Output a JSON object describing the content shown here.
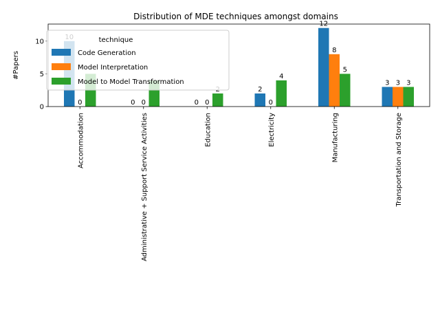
{
  "chart_data": {
    "type": "bar",
    "title": "Distribution of MDE techniques amongst domains",
    "xlabel": "",
    "ylabel": "#Papers",
    "ylim": [
      0,
      12.6
    ],
    "yticks": [
      0,
      5,
      10
    ],
    "grid": false,
    "legend": {
      "title": "technique",
      "position": "top-left"
    },
    "categories": [
      "Accommodation",
      "Administrative + Support Service Activities",
      "Education",
      "Electricity",
      "Manufacturing",
      "Transportation and Storage"
    ],
    "series": [
      {
        "name": "Code Generation",
        "color": "#1f77b4",
        "values": [
          10,
          0,
          0,
          2,
          12,
          3
        ],
        "labels": [
          "10",
          "0",
          "0",
          "2",
          "12",
          "3"
        ]
      },
      {
        "name": "Model Interpretation",
        "color": "#ff7f0e",
        "values": [
          0,
          0,
          0,
          0,
          8,
          3
        ],
        "labels": [
          "0",
          "0",
          "0",
          "0",
          "8",
          "3"
        ]
      },
      {
        "name": "Model to Model Transformation",
        "color": "#2ca02c",
        "values": [
          5,
          4,
          2,
          4,
          5,
          3
        ],
        "labels": [
          "",
          "",
          "2",
          "4",
          "5",
          "3"
        ]
      }
    ]
  }
}
